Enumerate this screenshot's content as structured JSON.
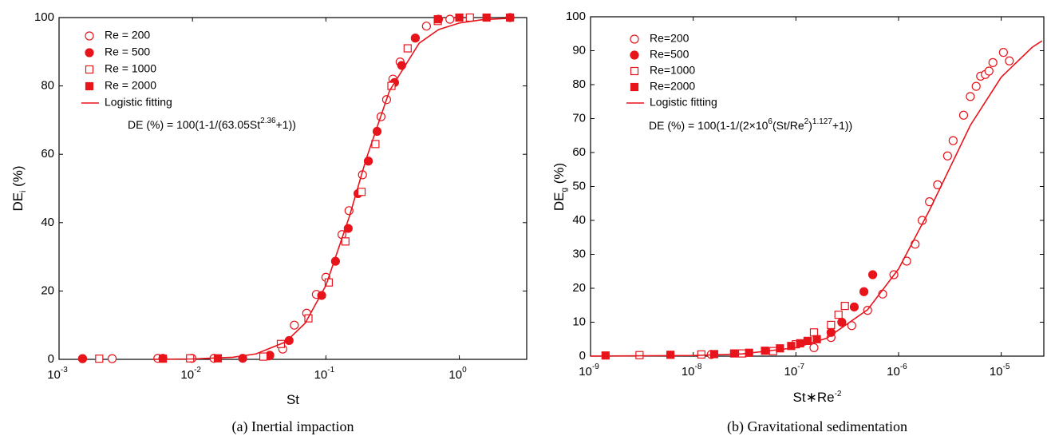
{
  "chart_data": [
    {
      "type": "scatter",
      "xscale": "log",
      "legend": "upper left",
      "caption": "(a) Inertial impaction",
      "xlabel": [
        {
          "text": "St"
        }
      ],
      "ylabel": [
        {
          "text": "DE"
        },
        {
          "text": "i",
          "sub": true
        },
        {
          "text": " (%)"
        }
      ],
      "equation": [
        {
          "text": "DE (%) = 100(1-1/(63.05St"
        },
        {
          "text": "2.36",
          "sup": true
        },
        {
          "text": "+1))"
        }
      ],
      "xlim": [
        0.001,
        3.2
      ],
      "ylim": [
        0,
        100
      ],
      "xticks": [
        {
          "value": 0.001,
          "label": "10",
          "sup": "-3"
        },
        {
          "value": 0.01,
          "label": "10",
          "sup": "-2"
        },
        {
          "value": 0.1,
          "label": "10",
          "sup": "-1"
        },
        {
          "value": 1,
          "label": "10",
          "sup": "0"
        }
      ],
      "yticks": [
        0,
        20,
        40,
        60,
        80,
        100
      ],
      "series": [
        {
          "name": "Re = 200",
          "marker": "circle",
          "filled": false,
          "color": "#e8141b",
          "x": [
            0.0015,
            0.0025,
            0.0055,
            0.0099,
            0.0145,
            0.0376,
            0.0475,
            0.058,
            0.0718,
            0.0848,
            0.1,
            0.132,
            0.149,
            0.188,
            0.259,
            0.285,
            0.318,
            0.36,
            0.468,
            0.567,
            0.85
          ],
          "values": [
            0.2,
            0.2,
            0.3,
            0.3,
            0.3,
            1,
            3,
            10,
            13.5,
            19,
            24,
            36.5,
            43.5,
            54,
            71,
            76,
            82,
            87,
            94,
            97.5,
            99.5
          ]
        },
        {
          "name": "Re = 500",
          "marker": "circle",
          "filled": true,
          "color": "#e8141b",
          "x": [
            0.0015,
            0.006,
            0.0238,
            0.038,
            0.053,
            0.093,
            0.118,
            0.147,
            0.174,
            0.208,
            0.242,
            0.327,
            0.37,
            0.468,
            0.698,
            2.4
          ],
          "values": [
            0.2,
            0.3,
            0.3,
            1.2,
            5.5,
            18.7,
            28.7,
            38.3,
            48.5,
            58,
            66.7,
            81,
            86,
            94,
            99.5,
            100
          ]
        },
        {
          "name": "Re = 1000",
          "marker": "square",
          "filled": false,
          "color": "#e8141b",
          "x": [
            0.002,
            0.0096,
            0.034,
            0.046,
            0.074,
            0.105,
            0.14,
            0.185,
            0.235,
            0.31,
            0.41,
            0.69,
            1.2
          ],
          "values": [
            0.2,
            0.3,
            0.8,
            4.5,
            12,
            22.5,
            34.5,
            49,
            63,
            80,
            91,
            99,
            100
          ]
        },
        {
          "name": "Re = 2000",
          "marker": "square",
          "filled": true,
          "color": "#e8141b",
          "x": [
            0.006,
            0.0155,
            0.69,
            1,
            1.6,
            2.4
          ],
          "values": [
            0.2,
            0.3,
            99.5,
            100,
            100,
            100
          ]
        },
        {
          "name": "Logistic fitting",
          "marker": "line",
          "color": "#e8141b",
          "x": [
            0.005,
            0.01,
            0.02,
            0.03,
            0.05,
            0.07,
            0.1,
            0.15,
            0.2,
            0.3,
            0.5,
            0.7,
            1,
            1.5,
            2.4
          ],
          "values": [
            0.02,
            0.12,
            0.61,
            1.6,
            5.1,
            10.6,
            21.6,
            41.8,
            58.5,
            78.6,
            92.5,
            96.5,
            98.4,
            99.4,
            99.8
          ]
        }
      ]
    },
    {
      "type": "scatter",
      "xscale": "log",
      "legend": "upper left",
      "caption": "(b) Gravitational sedimentation",
      "xlabel": [
        {
          "text": "St∗Re"
        },
        {
          "text": "-2",
          "sup": true
        }
      ],
      "ylabel": [
        {
          "text": "DE"
        },
        {
          "text": "g",
          "sub": true
        },
        {
          "text": " (%)"
        }
      ],
      "equation": [
        {
          "text": "DE (%) = 100(1-1/(2×10"
        },
        {
          "text": "6",
          "sup": true
        },
        {
          "text": "(St/Re"
        },
        {
          "text": "2",
          "sup": true
        },
        {
          "text": ")"
        },
        {
          "text": "1.127",
          "sup": true
        },
        {
          "text": "+1))"
        }
      ],
      "xlim": [
        1e-09,
        2.6e-05
      ],
      "ylim": [
        0,
        100
      ],
      "xticks": [
        {
          "value": 1e-09,
          "label": "10",
          "sup": "-9"
        },
        {
          "value": 1e-08,
          "label": "10",
          "sup": "-8"
        },
        {
          "value": 1e-07,
          "label": "10",
          "sup": "-7"
        },
        {
          "value": 1e-06,
          "label": "10",
          "sup": "-6"
        },
        {
          "value": 1e-05,
          "label": "10",
          "sup": "-5"
        }
      ],
      "yticks": [
        0,
        10,
        20,
        30,
        40,
        50,
        60,
        70,
        80,
        90,
        100
      ],
      "series": [
        {
          "name": "Re=200",
          "marker": "circle",
          "filled": false,
          "color": "#e8141b",
          "x": [
            1.5e-08,
            1.5e-07,
            2.2e-07,
            3.5e-07,
            5e-07,
            7e-07,
            9e-07,
            1.2e-06,
            1.45e-06,
            1.7e-06,
            2e-06,
            2.4e-06,
            3e-06,
            3.4e-06,
            4.3e-06,
            5e-06,
            5.7e-06,
            6.3e-06,
            7e-06,
            7.6e-06,
            8.3e-06,
            1.05e-05,
            1.2e-05
          ],
          "values": [
            0.5,
            2.5,
            5.5,
            9,
            13.5,
            18.3,
            24,
            28,
            33,
            40,
            45.5,
            50.5,
            59,
            63.5,
            71,
            76.5,
            79.5,
            82.5,
            83,
            84,
            86.5,
            89.5,
            87
          ]
        },
        {
          "name": "Re=500",
          "marker": "circle",
          "filled": true,
          "color": "#e8141b",
          "x": [
            2.2e-07,
            2.8e-07,
            3.7e-07,
            4.6e-07,
            5.6e-07
          ],
          "values": [
            7,
            10,
            14.5,
            19,
            24
          ]
        },
        {
          "name": "Re=1000",
          "marker": "square",
          "filled": false,
          "color": "#e8141b",
          "x": [
            3e-09,
            1.2e-08,
            3e-08,
            6e-08,
            1e-07,
            1.5e-07,
            2.2e-07,
            2.6e-07,
            3e-07
          ],
          "values": [
            0.3,
            0.5,
            0.8,
            1.5,
            3.5,
            7,
            9.2,
            12.2,
            14.8
          ]
        },
        {
          "name": "Re=2000",
          "marker": "square",
          "filled": true,
          "color": "#e8141b",
          "x": [
            1.4e-09,
            6e-09,
            1.6e-08,
            2.5e-08,
            3.5e-08,
            5e-08,
            7e-08,
            9e-08,
            1.1e-07,
            1.3e-07,
            1.6e-07
          ],
          "values": [
            0.2,
            0.4,
            0.6,
            0.8,
            1,
            1.6,
            2.3,
            3,
            3.8,
            4.5,
            5
          ]
        },
        {
          "name": "Logistic fitting",
          "marker": "line",
          "color": "#e8141b",
          "x": [
            1e-09,
            1e-08,
            3e-08,
            1e-07,
            2e-07,
            5e-07,
            1e-06,
            2e-06,
            5e-06,
            1e-05,
            2e-05,
            2.5e-05
          ],
          "values": [
            0.014,
            0.19,
            0.66,
            2.5,
            5.3,
            13.7,
            25.7,
            43,
            68,
            82.2,
            91,
            92.9
          ]
        }
      ]
    }
  ]
}
